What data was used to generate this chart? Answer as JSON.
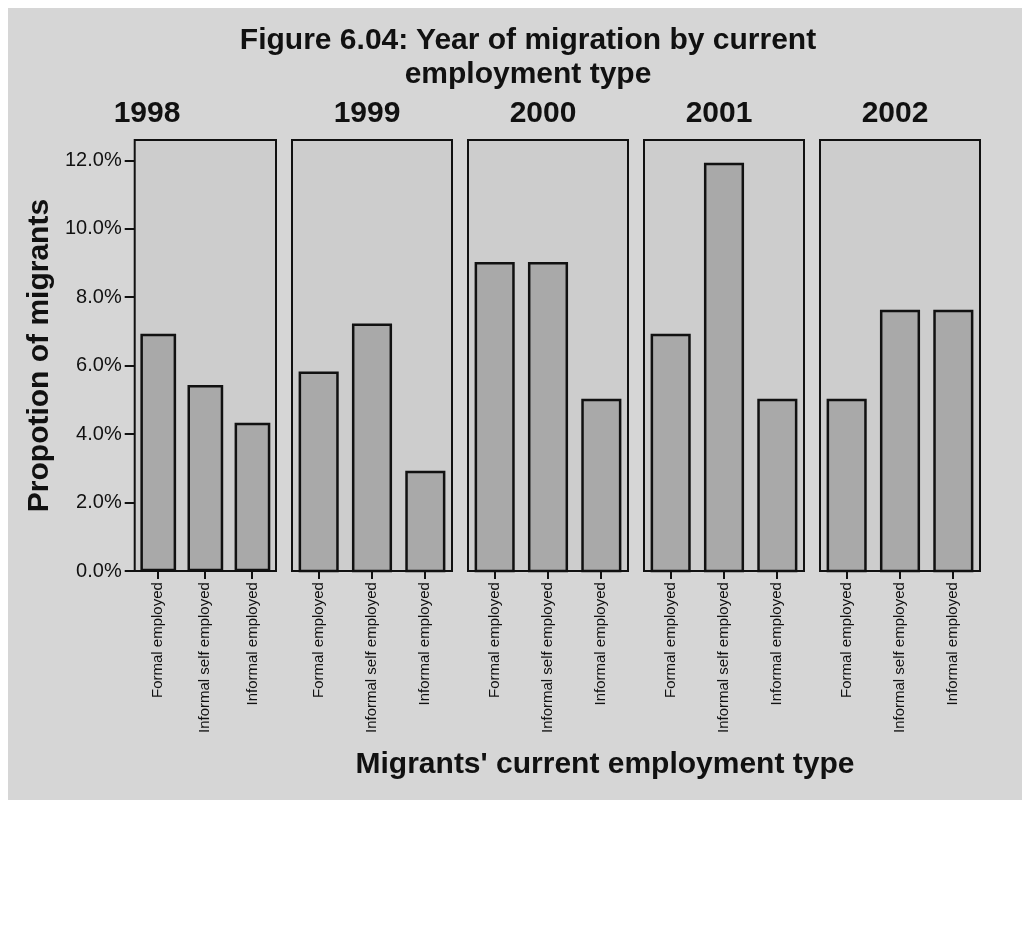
{
  "chart_data": [
    {
      "type": "bar",
      "title": "Figure 6.04: Year of migration by current employment type",
      "subtitle": "1998",
      "xlabel": "Migrants' current employment type",
      "ylabel": "Propotion of migrants",
      "categories": [
        "Formal employed",
        "Informal self employed",
        "Informal employed"
      ],
      "values": [
        6.9,
        5.4,
        4.3
      ],
      "color": "#a9a9a9",
      "ylim": [
        0,
        12.6
      ],
      "yticks": [
        {
          "value": 0,
          "label": "0.0%"
        },
        {
          "value": 2,
          "label": "2.0%"
        },
        {
          "value": 4,
          "label": "4.0%"
        },
        {
          "value": 6,
          "label": "6.0%"
        },
        {
          "value": 8,
          "label": "8.0%"
        },
        {
          "value": 10,
          "label": "10.0%"
        },
        {
          "value": 12,
          "label": "12.0%"
        }
      ]
    },
    {
      "type": "bar",
      "subtitle": "1999",
      "categories": [
        "Formal employed",
        "Informal self employed",
        "Informal employed"
      ],
      "values": [
        5.8,
        7.2,
        2.9
      ],
      "color": "#a9a9a9",
      "ylim": [
        0,
        12.6
      ],
      "tick_labels": "x"
    },
    {
      "type": "bar",
      "subtitle": "2000",
      "categories": [
        "Formal employed",
        "Informal self employed",
        "Informal employed"
      ],
      "values": [
        9.0,
        9.0,
        5.0
      ],
      "color": "#a9a9a9",
      "ylim": [
        0,
        12.6
      ],
      "tick_labels": "x"
    },
    {
      "type": "bar",
      "subtitle": "2001",
      "categories": [
        "Formal employed",
        "Informal self employed",
        "Informal employed"
      ],
      "values": [
        6.9,
        11.9,
        5.0
      ],
      "color": "#a9a9a9",
      "ylim": [
        0,
        12.6
      ],
      "tick_labels": "x"
    },
    {
      "type": "bar",
      "subtitle": "2002",
      "categories": [
        "Formal employed",
        "Informal self employed",
        "Informal employed"
      ],
      "values": [
        5.0,
        7.6,
        7.6
      ],
      "color": "#a9a9a9",
      "ylim": [
        0,
        12.6
      ],
      "tick_labels": "x"
    }
  ]
}
